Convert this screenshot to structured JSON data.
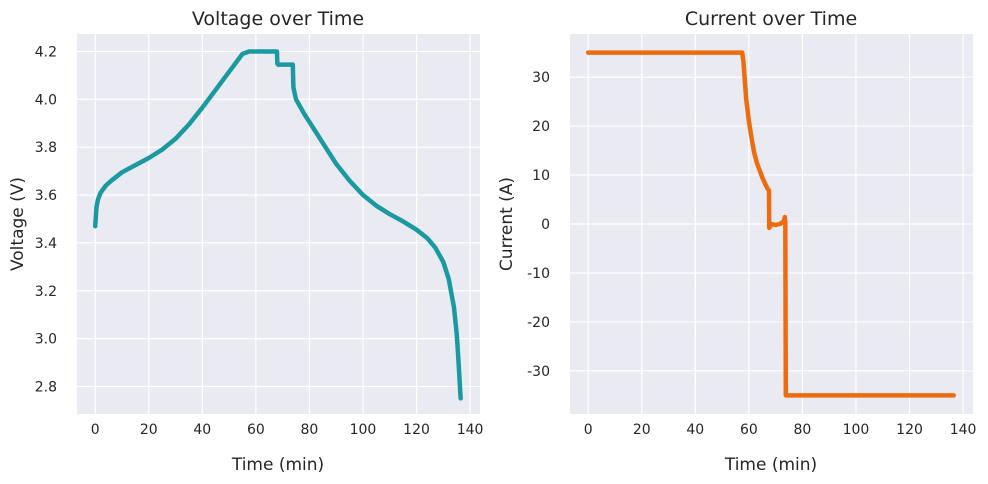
{
  "chart_data": [
    {
      "type": "line",
      "title": "Voltage over Time",
      "xlabel": "Time (min)",
      "ylabel": "Voltage (V)",
      "xlim": [
        -6.8,
        143.7
      ],
      "ylim": [
        2.685,
        4.273
      ],
      "xticks": [
        0,
        20,
        40,
        60,
        80,
        100,
        120,
        140
      ],
      "yticks": [
        2.8,
        3.0,
        3.2,
        3.4,
        3.6,
        3.8,
        4.0,
        4.2
      ],
      "tick_decimals": 1,
      "grid": true,
      "series": [
        {
          "color": "#1a9aa0",
          "x": [
            0,
            0.5,
            1,
            2,
            4,
            6,
            10,
            15,
            20,
            25,
            30,
            35,
            40,
            45,
            50,
            55,
            57.5,
            58,
            60,
            62,
            64,
            66,
            67.9,
            68,
            68.3,
            70,
            72,
            73.5,
            73.8,
            74,
            75,
            78,
            82,
            86,
            90,
            95,
            100,
            105,
            110,
            115,
            120,
            124,
            127,
            130,
            132,
            134,
            135,
            135.5,
            136,
            136.3,
            136.5
          ],
          "y": [
            3.47,
            3.55,
            3.58,
            3.61,
            3.64,
            3.66,
            3.695,
            3.725,
            3.755,
            3.79,
            3.835,
            3.895,
            3.965,
            4.04,
            4.115,
            4.19,
            4.2,
            4.2,
            4.2,
            4.2,
            4.2,
            4.2,
            4.2,
            4.15,
            4.145,
            4.145,
            4.145,
            4.145,
            4.145,
            4.05,
            4.0,
            3.94,
            3.87,
            3.8,
            3.73,
            3.66,
            3.6,
            3.555,
            3.52,
            3.49,
            3.455,
            3.42,
            3.38,
            3.32,
            3.25,
            3.13,
            3.02,
            2.94,
            2.84,
            2.78,
            2.75
          ]
        }
      ]
    },
    {
      "type": "line",
      "title": "Current over Time",
      "xlabel": "Time (min)",
      "ylabel": "Current (A)",
      "xlim": [
        -6.8,
        143.7
      ],
      "ylim": [
        -38.8,
        38.8
      ],
      "xticks": [
        0,
        20,
        40,
        60,
        80,
        100,
        120,
        140
      ],
      "yticks": [
        -30,
        -20,
        -10,
        0,
        10,
        20,
        30
      ],
      "tick_decimals": 0,
      "grid": true,
      "series": [
        {
          "color": "#ee6c10",
          "x": [
            0,
            10,
            20,
            30,
            40,
            50,
            57.5,
            58,
            58.5,
            59,
            60,
            61,
            62,
            63,
            64,
            65,
            66,
            67,
            67.5,
            67.6,
            68.5,
            70,
            71.5,
            72.5,
            73,
            73.4,
            73.6,
            73.8,
            80,
            90,
            100,
            110,
            120,
            130,
            136.5
          ],
          "y": [
            35,
            35,
            35,
            35,
            35,
            35,
            35,
            33,
            29,
            25.5,
            21,
            17.5,
            14.5,
            12.5,
            11,
            9.5,
            8.3,
            7.2,
            6.8,
            -0.8,
            0,
            -0.2,
            0,
            0.3,
            0.5,
            1.4,
            0.5,
            -35,
            -35,
            -35,
            -35,
            -35,
            -35,
            -35,
            -35
          ]
        }
      ]
    }
  ]
}
